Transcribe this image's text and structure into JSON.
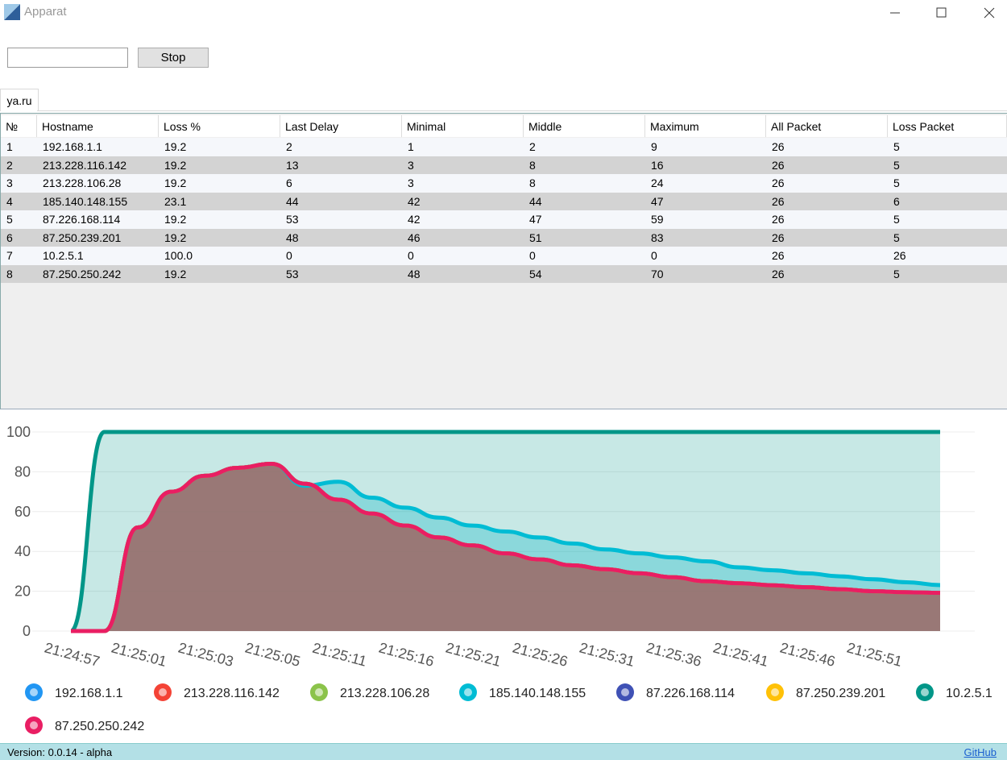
{
  "window": {
    "title": "Apparat"
  },
  "toolbar": {
    "button": "Stop"
  },
  "tab": "ya.ru",
  "table": {
    "columns": [
      "№",
      "Hostname",
      "Loss %",
      "Last Delay",
      "Minimal",
      "Middle",
      "Maximum",
      "All Packet",
      "Loss Packet"
    ],
    "rows": [
      [
        "1",
        "192.168.1.1",
        "19.2",
        "2",
        "1",
        "2",
        "9",
        "26",
        "5"
      ],
      [
        "2",
        "213.228.116.142",
        "19.2",
        "13",
        "3",
        "8",
        "16",
        "26",
        "5"
      ],
      [
        "3",
        "213.228.106.28",
        "19.2",
        "6",
        "3",
        "8",
        "24",
        "26",
        "5"
      ],
      [
        "4",
        "185.140.148.155",
        "23.1",
        "44",
        "42",
        "44",
        "47",
        "26",
        "6"
      ],
      [
        "5",
        "87.226.168.114",
        "19.2",
        "53",
        "42",
        "47",
        "59",
        "26",
        "5"
      ],
      [
        "6",
        "87.250.239.201",
        "19.2",
        "48",
        "46",
        "51",
        "83",
        "26",
        "5"
      ],
      [
        "7",
        "10.2.5.1",
        "100.0",
        "0",
        "0",
        "0",
        "0",
        "26",
        "26"
      ],
      [
        "8",
        "87.250.250.242",
        "19.2",
        "53",
        "48",
        "54",
        "70",
        "26",
        "5"
      ]
    ]
  },
  "chart_data": {
    "type": "area",
    "categories": [
      "21:24:57",
      null,
      "21:25:01",
      null,
      "21:25:03",
      null,
      "21:25:05",
      null,
      "21:25:11",
      null,
      "21:25:16",
      null,
      "21:25:21",
      null,
      "21:25:26",
      null,
      "21:25:31",
      null,
      "21:25:36",
      null,
      "21:25:41",
      null,
      "21:25:46",
      null,
      "21:25:51",
      null,
      null
    ],
    "ylim": [
      0,
      100
    ],
    "yticks": [
      0,
      20,
      40,
      60,
      80,
      100
    ],
    "grid": true,
    "series": [
      {
        "name": "192.168.1.1",
        "color": "#2196f3",
        "values": [
          0,
          0,
          52,
          70,
          78,
          82,
          84,
          74,
          66,
          59,
          53,
          47,
          43,
          39,
          36,
          33,
          31,
          29,
          27,
          25,
          24,
          23,
          22,
          21,
          20,
          19.5,
          19.2
        ]
      },
      {
        "name": "213.228.116.142",
        "color": "#f44336",
        "values": [
          0,
          0,
          52,
          70,
          78,
          82,
          84,
          74,
          66,
          59,
          53,
          47,
          43,
          39,
          36,
          33,
          31,
          29,
          27,
          25,
          24,
          23,
          22,
          21,
          20,
          19.5,
          19.2
        ]
      },
      {
        "name": "213.228.106.28",
        "color": "#8bc34a",
        "values": [
          0,
          0,
          52,
          70,
          78,
          82,
          84,
          74,
          66,
          59,
          53,
          47,
          43,
          39,
          36,
          33,
          31,
          29,
          27,
          25,
          24,
          23,
          22,
          21,
          20,
          19.5,
          19.2
        ]
      },
      {
        "name": "185.140.148.155",
        "color": "#00bcd4",
        "values": [
          0,
          0,
          52,
          70,
          78,
          82,
          84,
          73,
          75,
          67,
          62,
          57,
          53,
          50,
          47,
          44,
          41,
          39,
          37,
          35,
          32,
          30.5,
          29,
          27.5,
          26,
          24.5,
          23.1
        ]
      },
      {
        "name": "87.226.168.114",
        "color": "#3f51b5",
        "values": [
          0,
          0,
          52,
          70,
          78,
          82,
          84,
          74,
          66,
          59,
          53,
          47,
          43,
          39,
          36,
          33,
          31,
          29,
          27,
          25,
          24,
          23,
          22,
          21,
          20,
          19.5,
          19.2
        ]
      },
      {
        "name": "87.250.239.201",
        "color": "#ffc107",
        "values": [
          0,
          0,
          52,
          70,
          78,
          82,
          84,
          74,
          66,
          59,
          53,
          47,
          43,
          39,
          36,
          33,
          31,
          29,
          27,
          25,
          24,
          23,
          22,
          21,
          20,
          19.5,
          19.2
        ]
      },
      {
        "name": "10.2.5.1",
        "color": "#009688",
        "values": [
          0,
          100,
          100,
          100,
          100,
          100,
          100,
          100,
          100,
          100,
          100,
          100,
          100,
          100,
          100,
          100,
          100,
          100,
          100,
          100,
          100,
          100,
          100,
          100,
          100,
          100,
          100
        ]
      },
      {
        "name": "87.250.250.242",
        "color": "#e91e63",
        "values": [
          0,
          0,
          52,
          70,
          78,
          82,
          84,
          74,
          66,
          59,
          53,
          47,
          43,
          39,
          36,
          33,
          31,
          29,
          27,
          25,
          24,
          23,
          22,
          21,
          20,
          19.5,
          19.2
        ]
      }
    ]
  },
  "footer": {
    "version": "Version: 0.0.14 - alpha",
    "link": "GitHub"
  }
}
